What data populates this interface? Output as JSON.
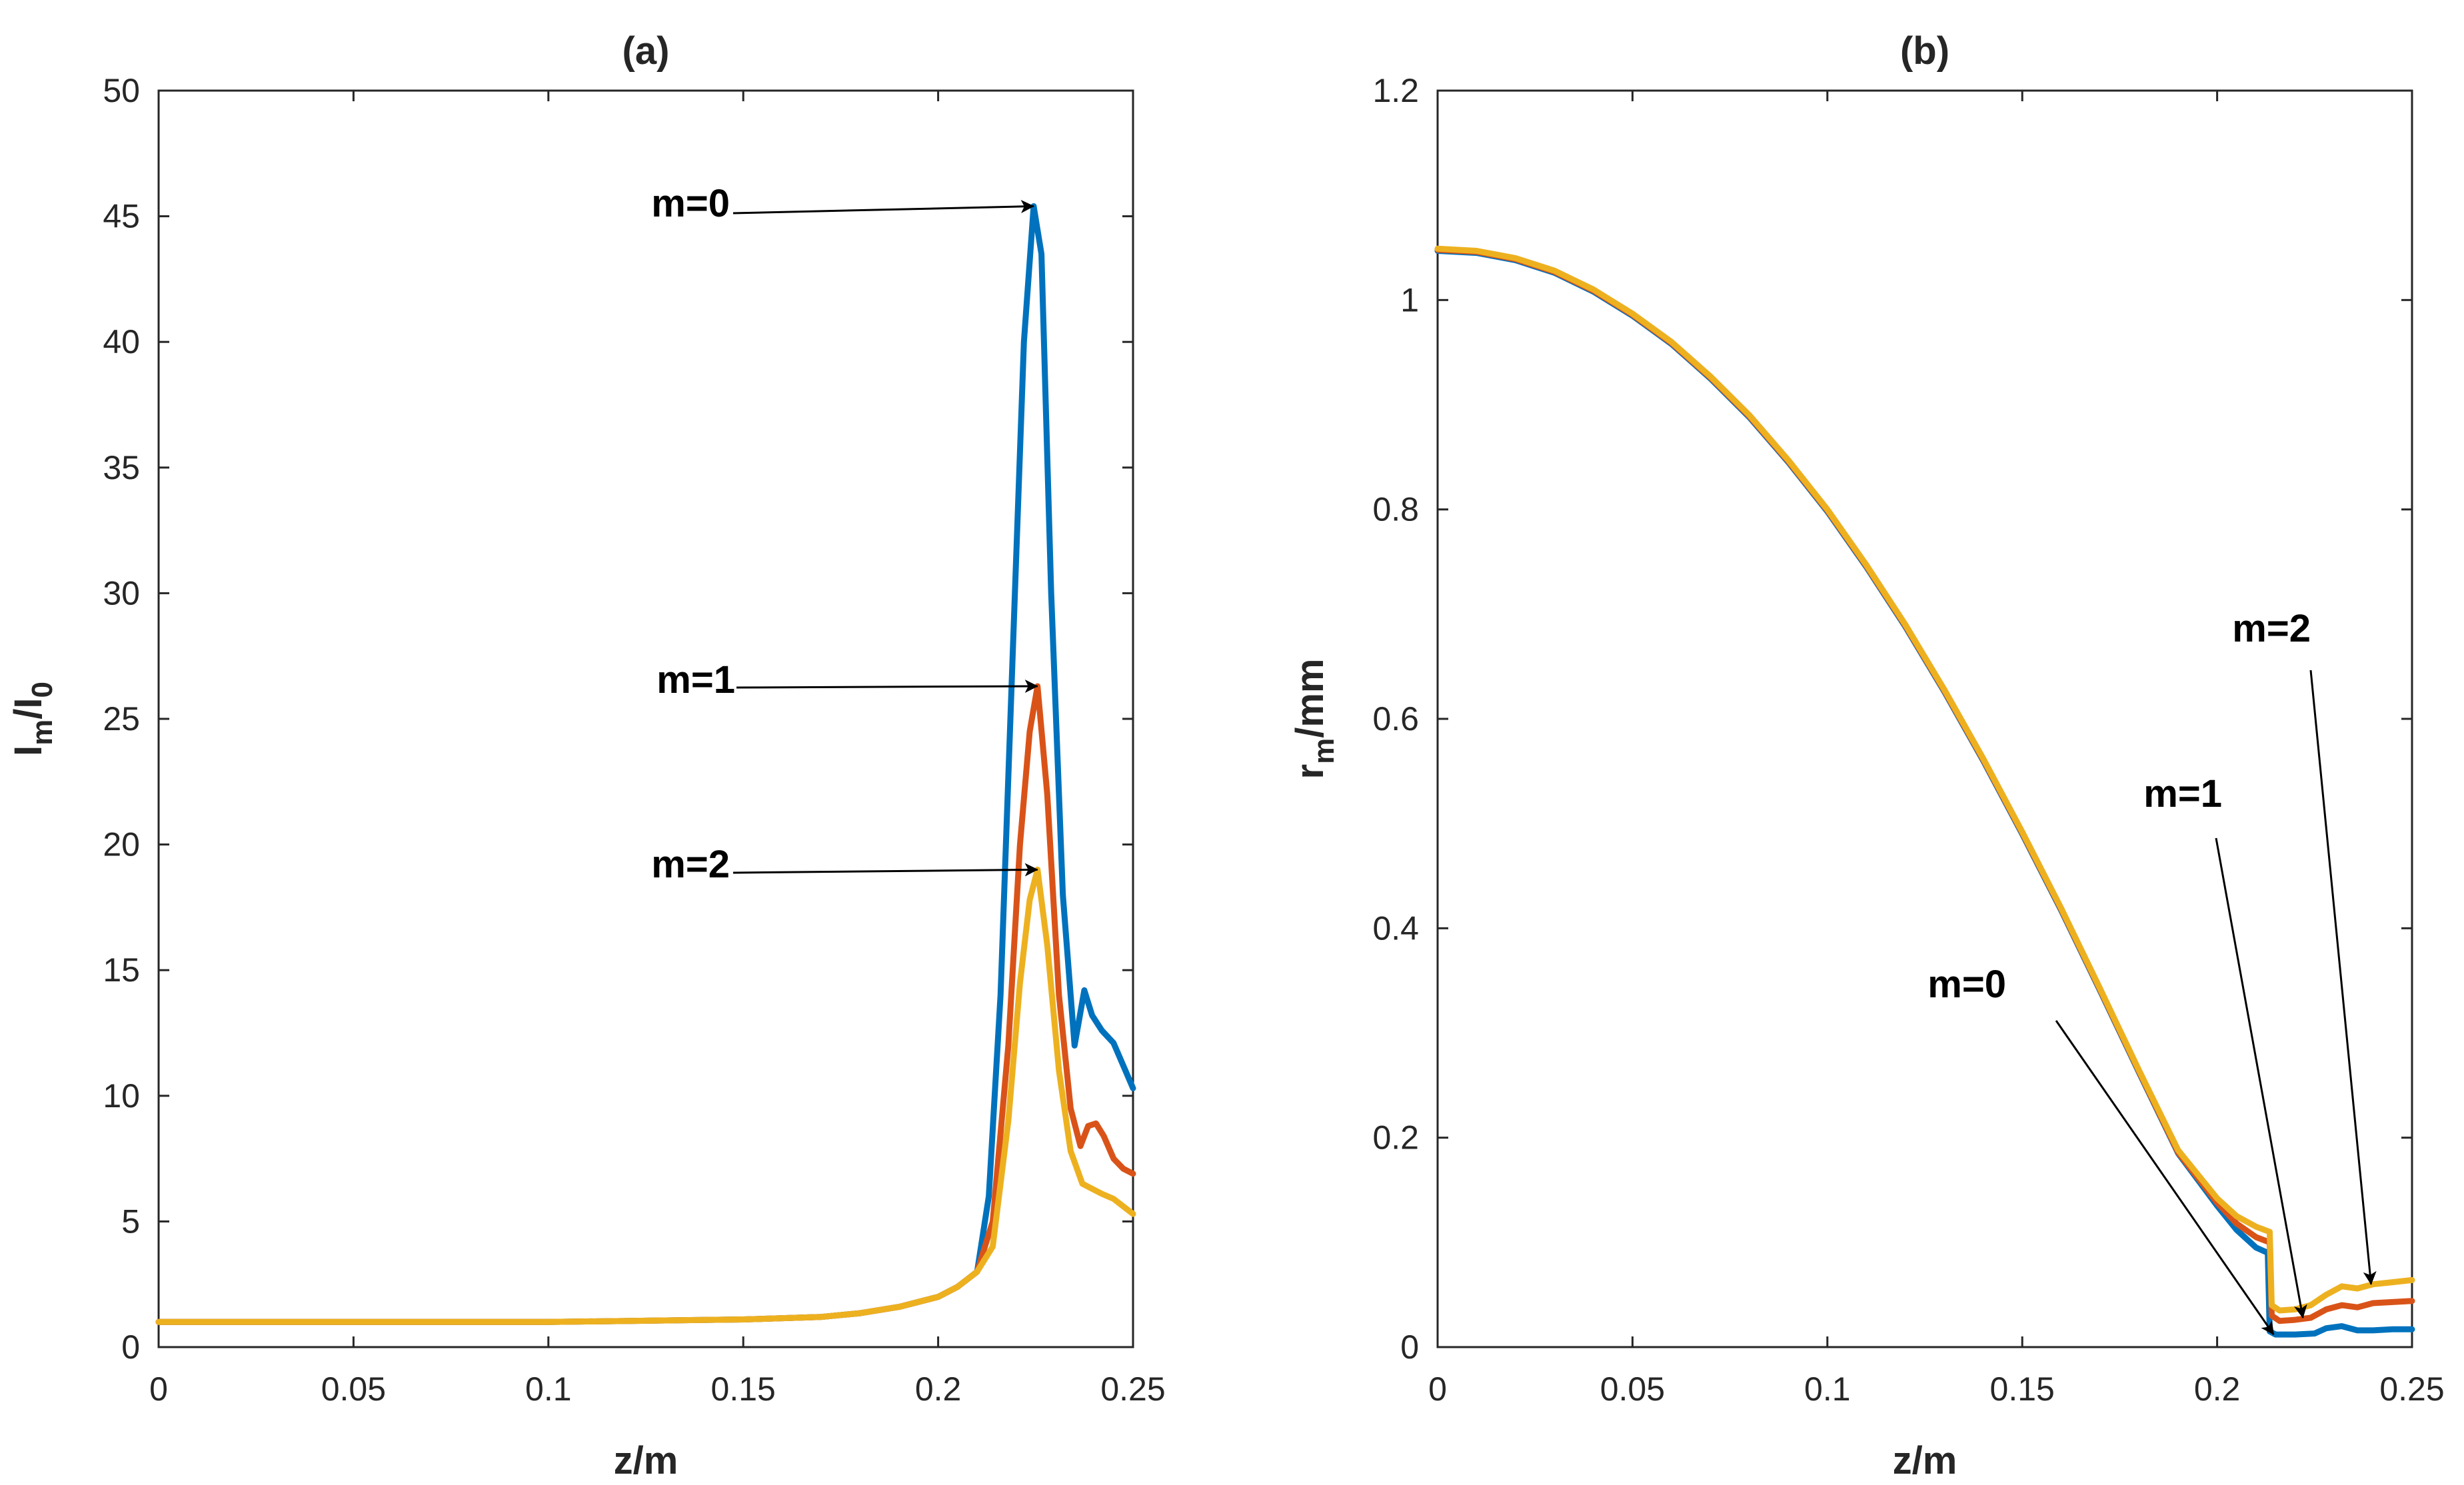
{
  "chart_data": [
    {
      "type": "line",
      "title": "(a)",
      "xlabel": "z/m",
      "ylabel": "I_m/I_0",
      "ylabel_parts": {
        "main1": "I",
        "sub1": "m",
        "main2": "/I",
        "sub2": "0"
      },
      "xlim": [
        0,
        0.25
      ],
      "ylim": [
        0,
        50
      ],
      "xticks": [
        0,
        0.05,
        0.1,
        0.15,
        0.2,
        0.25
      ],
      "xtick_labels": [
        "0",
        "0.05",
        "0.1",
        "0.15",
        "0.2",
        "0.25"
      ],
      "yticks": [
        0,
        5,
        10,
        15,
        20,
        25,
        30,
        35,
        40,
        45,
        50
      ],
      "ytick_labels": [
        "0",
        "5",
        "10",
        "15",
        "20",
        "25",
        "30",
        "35",
        "40",
        "45",
        "50"
      ],
      "series": [
        {
          "name": "m=0",
          "color": "#0072BD",
          "x": [
            0,
            0.05,
            0.1,
            0.15,
            0.17,
            0.18,
            0.19,
            0.2,
            0.205,
            0.21,
            0.213,
            0.216,
            0.219,
            0.222,
            0.2245,
            0.2265,
            0.229,
            0.232,
            0.235,
            0.2375,
            0.2395,
            0.242,
            0.245,
            0.2475,
            0.25
          ],
          "y": [
            1,
            1,
            1,
            1.1,
            1.2,
            1.35,
            1.6,
            2,
            2.4,
            3,
            6,
            14,
            27,
            40,
            45.4,
            43.5,
            30,
            18,
            12,
            14.2,
            13.2,
            12.6,
            12.1,
            11.2,
            10.3
          ]
        },
        {
          "name": "m=1",
          "color": "#D95319",
          "x": [
            0,
            0.05,
            0.1,
            0.15,
            0.17,
            0.18,
            0.19,
            0.2,
            0.205,
            0.21,
            0.214,
            0.218,
            0.221,
            0.2235,
            0.2255,
            0.228,
            0.231,
            0.234,
            0.2365,
            0.2385,
            0.2405,
            0.2425,
            0.245,
            0.2475,
            0.25
          ],
          "y": [
            1,
            1,
            1,
            1.1,
            1.2,
            1.35,
            1.6,
            2,
            2.4,
            3,
            5,
            12,
            20,
            24.5,
            26.3,
            22,
            14,
            9.5,
            8,
            8.8,
            8.9,
            8.4,
            7.5,
            7.1,
            6.9
          ]
        },
        {
          "name": "m=2",
          "color": "#EDB120",
          "x": [
            0,
            0.05,
            0.1,
            0.15,
            0.17,
            0.18,
            0.19,
            0.2,
            0.205,
            0.21,
            0.214,
            0.218,
            0.221,
            0.2235,
            0.2255,
            0.228,
            0.231,
            0.234,
            0.237,
            0.2395,
            0.242,
            0.245,
            0.2475,
            0.25
          ],
          "y": [
            1,
            1,
            1,
            1.1,
            1.2,
            1.35,
            1.6,
            2,
            2.4,
            3,
            4,
            9,
            14.5,
            17.8,
            19,
            16,
            11,
            7.8,
            6.5,
            6.3,
            6.1,
            5.9,
            5.6,
            5.3
          ]
        }
      ],
      "annotations": [
        {
          "text": "m=0",
          "to": [
            0.2245,
            45.4
          ]
        },
        {
          "text": "m=1",
          "to": [
            0.2255,
            26.3
          ]
        },
        {
          "text": "m=2",
          "to": [
            0.2255,
            19
          ]
        }
      ]
    },
    {
      "type": "line",
      "title": "(b)",
      "xlabel": "z/m",
      "ylabel": "r_m/mm",
      "ylabel_parts": {
        "main1": "r",
        "sub1": "m",
        "main2": "/mm"
      },
      "xlim": [
        0,
        0.25
      ],
      "ylim": [
        0,
        1.2
      ],
      "xticks": [
        0,
        0.05,
        0.1,
        0.15,
        0.2,
        0.25
      ],
      "xtick_labels": [
        "0",
        "0.05",
        "0.1",
        "0.15",
        "0.2",
        "0.25"
      ],
      "yticks": [
        0,
        0.2,
        0.4,
        0.6,
        0.8,
        1,
        1.2
      ],
      "ytick_labels": [
        "0",
        "0.2",
        "0.4",
        "0.6",
        "0.8",
        "1",
        "1.2"
      ],
      "series": [
        {
          "name": "m=0",
          "color": "#0072BD",
          "x": [
            0,
            0.01,
            0.02,
            0.03,
            0.04,
            0.05,
            0.06,
            0.07,
            0.08,
            0.09,
            0.1,
            0.11,
            0.12,
            0.13,
            0.14,
            0.15,
            0.16,
            0.17,
            0.18,
            0.19,
            0.2,
            0.205,
            0.21,
            0.213,
            0.2135,
            0.215,
            0.22,
            0.225,
            0.228,
            0.232,
            0.236,
            0.24,
            0.245,
            0.25
          ],
          "y": [
            1.047,
            1.045,
            1.038,
            1.026,
            1.008,
            0.985,
            0.958,
            0.925,
            0.888,
            0.845,
            0.798,
            0.745,
            0.688,
            0.626,
            0.56,
            0.49,
            0.417,
            0.34,
            0.262,
            0.185,
            0.135,
            0.112,
            0.095,
            0.09,
            0.015,
            0.012,
            0.012,
            0.013,
            0.018,
            0.02,
            0.016,
            0.016,
            0.017,
            0.017
          ]
        },
        {
          "name": "m=1",
          "color": "#D95319",
          "x": [
            0,
            0.01,
            0.02,
            0.03,
            0.04,
            0.05,
            0.06,
            0.07,
            0.08,
            0.09,
            0.1,
            0.11,
            0.12,
            0.13,
            0.14,
            0.15,
            0.16,
            0.17,
            0.18,
            0.19,
            0.2,
            0.205,
            0.21,
            0.2135,
            0.214,
            0.216,
            0.22,
            0.224,
            0.228,
            0.232,
            0.236,
            0.24,
            0.245,
            0.25
          ],
          "y": [
            1.048,
            1.046,
            1.039,
            1.027,
            1.009,
            0.986,
            0.959,
            0.926,
            0.889,
            0.846,
            0.799,
            0.746,
            0.689,
            0.627,
            0.561,
            0.491,
            0.418,
            0.341,
            0.263,
            0.186,
            0.138,
            0.118,
            0.105,
            0.1,
            0.03,
            0.025,
            0.026,
            0.028,
            0.036,
            0.04,
            0.038,
            0.042,
            0.043,
            0.044
          ]
        },
        {
          "name": "m=2",
          "color": "#EDB120",
          "x": [
            0,
            0.01,
            0.02,
            0.03,
            0.04,
            0.05,
            0.06,
            0.07,
            0.08,
            0.09,
            0.1,
            0.11,
            0.12,
            0.13,
            0.14,
            0.15,
            0.16,
            0.17,
            0.18,
            0.19,
            0.2,
            0.205,
            0.21,
            0.2135,
            0.214,
            0.216,
            0.22,
            0.224,
            0.228,
            0.232,
            0.236,
            0.24,
            0.245,
            0.25
          ],
          "y": [
            1.049,
            1.047,
            1.04,
            1.028,
            1.01,
            0.987,
            0.96,
            0.927,
            0.89,
            0.847,
            0.8,
            0.747,
            0.69,
            0.628,
            0.562,
            0.492,
            0.419,
            0.342,
            0.264,
            0.188,
            0.142,
            0.125,
            0.115,
            0.11,
            0.04,
            0.035,
            0.036,
            0.04,
            0.05,
            0.058,
            0.056,
            0.06,
            0.062,
            0.064
          ]
        }
      ],
      "annotations": [
        {
          "text": "m=0",
          "to": [
            0.2145,
            0.012
          ]
        },
        {
          "text": "m=1",
          "to": [
            0.222,
            0.028
          ]
        },
        {
          "text": "m=2",
          "to": [
            0.2395,
            0.06
          ]
        }
      ]
    }
  ]
}
